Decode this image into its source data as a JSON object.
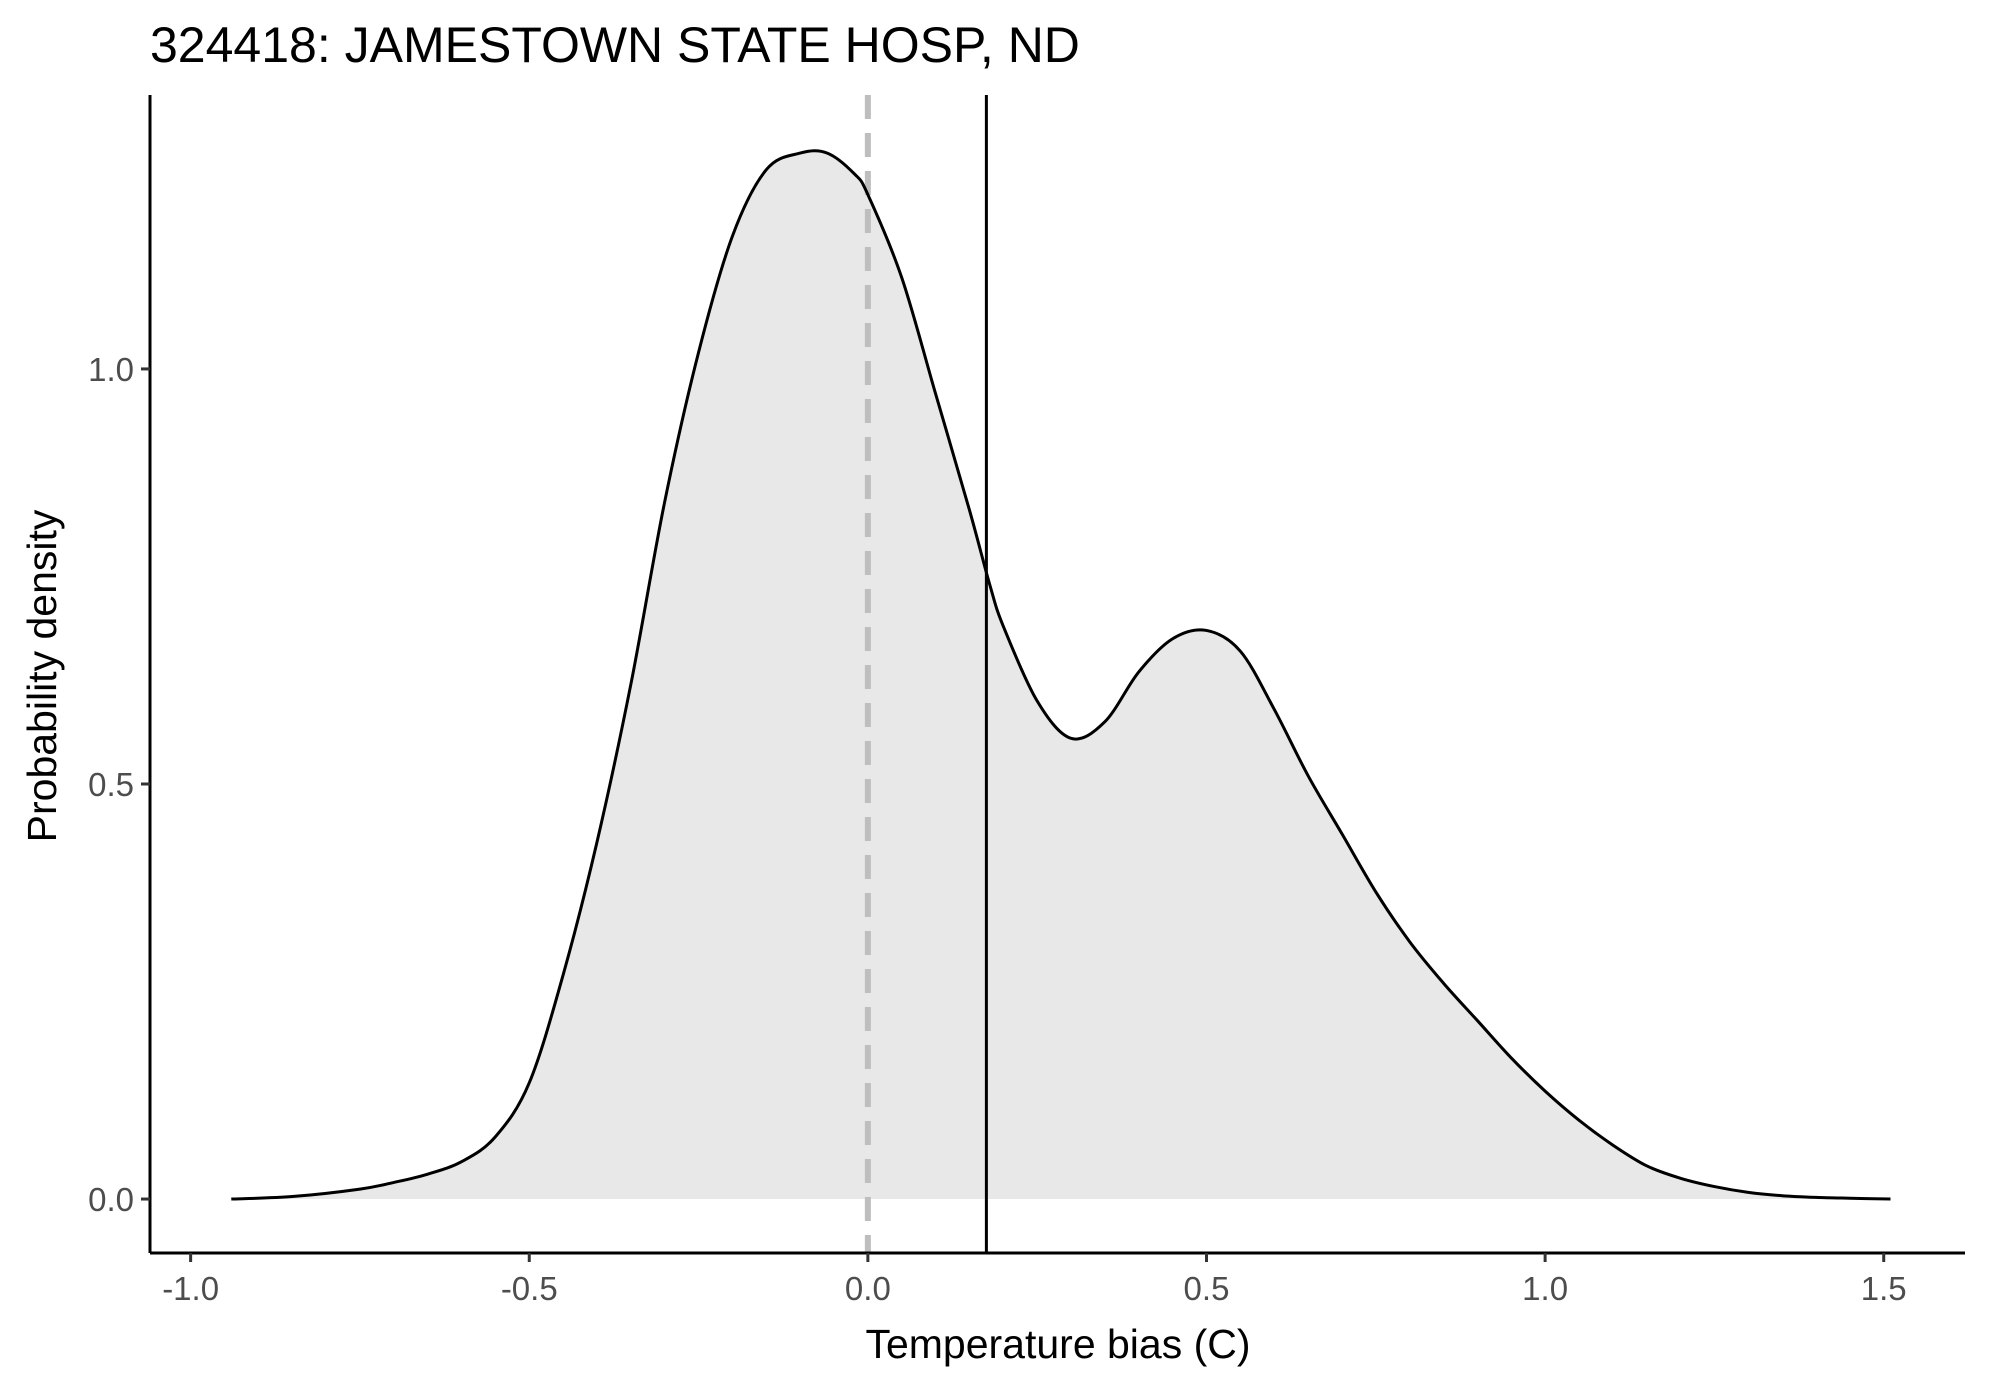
{
  "chart_data": {
    "type": "area",
    "title": "324418: JAMESTOWN STATE HOSP, ND",
    "xlabel": "Temperature bias (C)",
    "ylabel": "Probability density",
    "xlim": [
      -1.06,
      1.62
    ],
    "ylim": [
      -0.065,
      1.33
    ],
    "x_ticks": [
      -1.0,
      -0.5,
      0.0,
      0.5,
      1.0,
      1.5
    ],
    "x_tick_labels": [
      "-1.0",
      "-0.5",
      "0.0",
      "0.5",
      "1.0",
      "1.5"
    ],
    "y_ticks": [
      0.0,
      0.5,
      1.0
    ],
    "y_tick_labels": [
      "0.0",
      "0.5",
      "1.0"
    ],
    "grid": false,
    "legend": "none",
    "series": [
      {
        "x": [
          -0.94,
          -0.85,
          -0.75,
          -0.7,
          -0.65,
          -0.6,
          -0.55,
          -0.5,
          -0.45,
          -0.4,
          -0.35,
          -0.3,
          -0.25,
          -0.2,
          -0.15,
          -0.1,
          -0.06,
          -0.02,
          0.0,
          0.05,
          0.1,
          0.15,
          0.18,
          0.2,
          0.25,
          0.3,
          0.35,
          0.4,
          0.45,
          0.5,
          0.55,
          0.6,
          0.65,
          0.7,
          0.75,
          0.8,
          0.85,
          0.9,
          0.95,
          1.0,
          1.05,
          1.1,
          1.15,
          1.2,
          1.25,
          1.3,
          1.35,
          1.4,
          1.45,
          1.51
        ],
        "y": [
          0.0,
          0.003,
          0.012,
          0.02,
          0.03,
          0.045,
          0.075,
          0.14,
          0.27,
          0.43,
          0.62,
          0.84,
          1.02,
          1.16,
          1.24,
          1.26,
          1.26,
          1.235,
          1.21,
          1.11,
          0.97,
          0.83,
          0.74,
          0.69,
          0.6,
          0.555,
          0.575,
          0.635,
          0.675,
          0.685,
          0.66,
          0.59,
          0.51,
          0.44,
          0.37,
          0.31,
          0.26,
          0.215,
          0.17,
          0.13,
          0.095,
          0.065,
          0.04,
          0.025,
          0.015,
          0.008,
          0.004,
          0.002,
          0.001,
          0.0
        ],
        "line_color": "#000000",
        "fill_color": "#e8e8e8"
      }
    ],
    "reference_lines": [
      {
        "x": 0.0,
        "style": "dashed",
        "color": "#bebebe"
      },
      {
        "x": 0.175,
        "style": "solid",
        "color": "#000000"
      }
    ]
  }
}
